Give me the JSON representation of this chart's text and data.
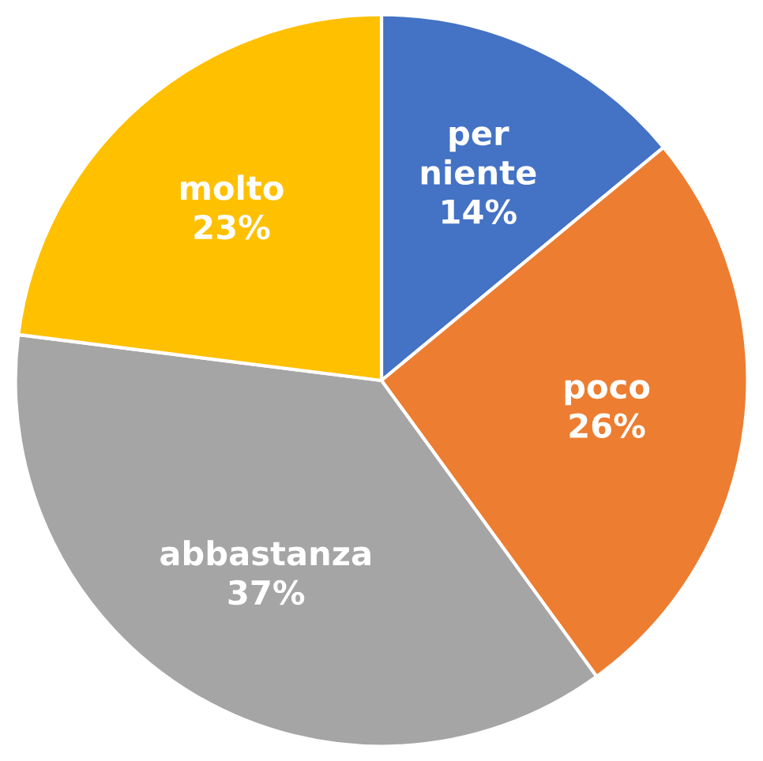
{
  "chart_data": {
    "type": "pie",
    "categories": [
      "per niente",
      "poco",
      "abbastanza",
      "molto"
    ],
    "values": [
      14,
      26,
      37,
      23
    ],
    "colors": [
      "#4472c4",
      "#ed7d31",
      "#a5a5a5",
      "#ffc000"
    ],
    "value_labels": [
      "14%",
      "26%",
      "37%",
      "23%"
    ]
  }
}
